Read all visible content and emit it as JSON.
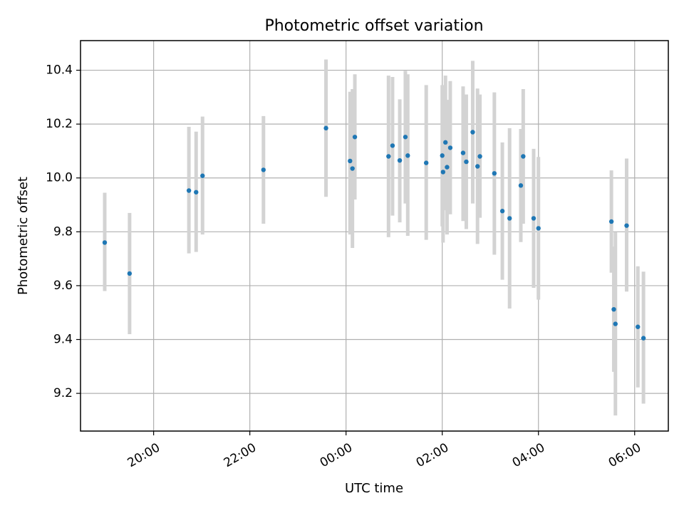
{
  "chart_data": {
    "type": "scatter",
    "title": "Photometric offset variation",
    "xlabel": "UTC time",
    "ylabel": "Photometric offset",
    "x_ticks": [
      "20:00",
      "22:00",
      "00:00",
      "02:00",
      "04:00",
      "06:00"
    ],
    "x_tick_hours": [
      20,
      22,
      24,
      26,
      28,
      30
    ],
    "xlim_hours": [
      18.48,
      30.7
    ],
    "y_ticks": [
      "9.2",
      "9.4",
      "9.6",
      "9.8",
      "10.0",
      "10.2",
      "10.4"
    ],
    "y_tick_values": [
      9.2,
      9.4,
      9.6,
      9.8,
      10.0,
      10.2,
      10.4
    ],
    "ylim": [
      9.06,
      10.51
    ],
    "grid": true,
    "point_color": "#1f77b4",
    "errorbar_color": "#d3d3d3",
    "points": [
      {
        "x": "18:59",
        "y": 9.76,
        "y_low": 9.58,
        "y_high": 9.945
      },
      {
        "x": "19:30",
        "y": 9.645,
        "y_low": 9.42,
        "y_high": 9.87
      },
      {
        "x": "20:44",
        "y": 9.953,
        "y_low": 9.72,
        "y_high": 10.19
      },
      {
        "x": "20:53",
        "y": 9.947,
        "y_low": 9.725,
        "y_high": 10.172
      },
      {
        "x": "21:01",
        "y": 10.008,
        "y_low": 9.79,
        "y_high": 10.228
      },
      {
        "x": "22:17",
        "y": 10.03,
        "y_low": 9.83,
        "y_high": 10.23
      },
      {
        "x": "23:35",
        "y": 10.185,
        "y_low": 9.93,
        "y_high": 10.44
      },
      {
        "x": "00:05",
        "y": 10.063,
        "y_low": 9.79,
        "y_high": 10.32
      },
      {
        "x": "00:08",
        "y": 10.035,
        "y_low": 9.74,
        "y_high": 10.33
      },
      {
        "x": "00:11",
        "y": 10.152,
        "y_low": 9.92,
        "y_high": 10.385
      },
      {
        "x": "00:53",
        "y": 10.08,
        "y_low": 9.78,
        "y_high": 10.38
      },
      {
        "x": "00:58",
        "y": 10.12,
        "y_low": 9.86,
        "y_high": 10.375
      },
      {
        "x": "01:07",
        "y": 10.065,
        "y_low": 9.835,
        "y_high": 10.292
      },
      {
        "x": "01:14",
        "y": 10.152,
        "y_low": 9.905,
        "y_high": 10.398
      },
      {
        "x": "01:17",
        "y": 10.083,
        "y_low": 9.785,
        "y_high": 10.385
      },
      {
        "x": "01:40",
        "y": 10.056,
        "y_low": 9.77,
        "y_high": 10.345
      },
      {
        "x": "02:00",
        "y": 10.083,
        "y_low": 9.82,
        "y_high": 10.345
      },
      {
        "x": "02:01",
        "y": 10.022,
        "y_low": 9.76,
        "y_high": 10.285
      },
      {
        "x": "02:04",
        "y": 10.132,
        "y_low": 9.88,
        "y_high": 10.38
      },
      {
        "x": "02:06",
        "y": 10.04,
        "y_low": 9.79,
        "y_high": 10.29
      },
      {
        "x": "02:10",
        "y": 10.112,
        "y_low": 9.865,
        "y_high": 10.36
      },
      {
        "x": "02:26",
        "y": 10.093,
        "y_low": 9.84,
        "y_high": 10.34
      },
      {
        "x": "02:30",
        "y": 10.06,
        "y_low": 9.81,
        "y_high": 10.31
      },
      {
        "x": "02:38",
        "y": 10.17,
        "y_low": 9.905,
        "y_high": 10.435
      },
      {
        "x": "02:44",
        "y": 10.043,
        "y_low": 9.755,
        "y_high": 10.332
      },
      {
        "x": "02:47",
        "y": 10.08,
        "y_low": 9.852,
        "y_high": 10.31
      },
      {
        "x": "03:05",
        "y": 10.017,
        "y_low": 9.715,
        "y_high": 10.318
      },
      {
        "x": "03:15",
        "y": 9.877,
        "y_low": 9.622,
        "y_high": 10.132
      },
      {
        "x": "03:24",
        "y": 9.85,
        "y_low": 9.515,
        "y_high": 10.185
      },
      {
        "x": "03:38",
        "y": 9.972,
        "y_low": 9.762,
        "y_high": 10.182
      },
      {
        "x": "03:41",
        "y": 10.08,
        "y_low": 9.83,
        "y_high": 10.33
      },
      {
        "x": "03:54",
        "y": 9.85,
        "y_low": 9.592,
        "y_high": 10.108
      },
      {
        "x": "04:00",
        "y": 9.813,
        "y_low": 9.548,
        "y_high": 10.078
      },
      {
        "x": "05:31",
        "y": 9.838,
        "y_low": 9.648,
        "y_high": 10.028
      },
      {
        "x": "05:34",
        "y": 9.512,
        "y_low": 9.28,
        "y_high": 9.745
      },
      {
        "x": "05:36",
        "y": 9.458,
        "y_low": 9.118,
        "y_high": 9.798
      },
      {
        "x": "05:50",
        "y": 9.823,
        "y_low": 9.578,
        "y_high": 10.072
      },
      {
        "x": "06:04",
        "y": 9.447,
        "y_low": 9.222,
        "y_high": 9.672
      },
      {
        "x": "06:11",
        "y": 9.405,
        "y_low": 9.162,
        "y_high": 9.652
      }
    ]
  }
}
